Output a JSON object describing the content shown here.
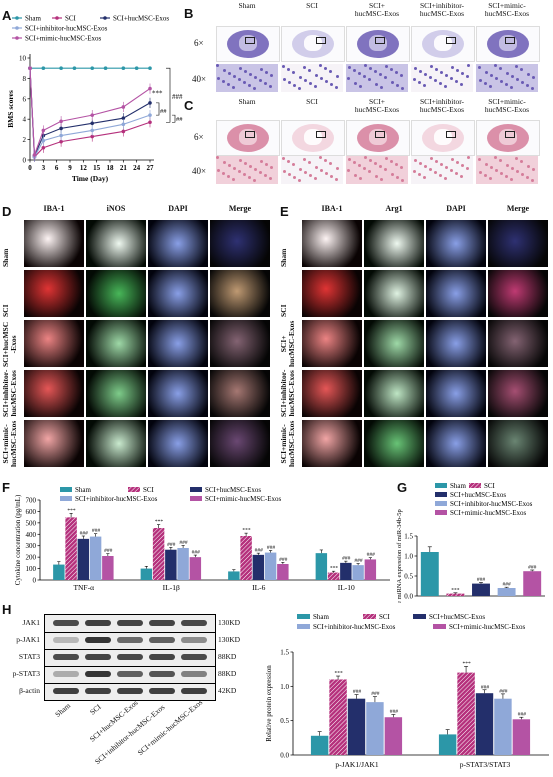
{
  "panel_labels": {
    "A": "A",
    "B": "B",
    "C": "C",
    "D": "D",
    "E": "E",
    "F": "F",
    "G": "G",
    "H": "H"
  },
  "colors": {
    "sham": "#2c97a8",
    "sci": "#b5307c",
    "exos": "#232f6b",
    "inhibitor": "#8fa8d8",
    "mimic": "#b453a4",
    "he_bg": "#f1d0da",
    "he_stain": "#d57d9a",
    "nissl_bg": "#c9c4e6",
    "nissl_stain": "#6a5bb4"
  },
  "groups_short": [
    "Sham",
    "SCI",
    "SCI+hucMSC-Exos",
    "SCI+inhibitor-hucMSC-Exos",
    "SCI+mimic-hucMSC-Exos"
  ],
  "panel_a": {
    "ylabel": "BMS scores",
    "xlabel": "Time (Day)",
    "sig_main": "***",
    "sig_right": "###",
    "sig_a": "##",
    "sig_b": "##"
  },
  "histology": {
    "mag_low": "6×",
    "mag_high": "40×",
    "columns": [
      "Sham",
      "SCI",
      "SCI+\nhucMSC-Exos",
      "SCI+inhibitor-\nhucMSC-Exos",
      "SCI+mimic-\nhucMSC-Exos"
    ]
  },
  "panel_d": {
    "headers": [
      "IBA-1",
      "iNOS",
      "DAPI",
      "Merge"
    ],
    "rows": [
      "Sham",
      "SCI",
      "SCI+hucMSC\n-Exos",
      "SCI+inhibitor-\nhucMSC-Exos",
      "SCI+mimic-\nhucMSC-Exos"
    ]
  },
  "panel_e": {
    "headers": [
      "IBA-1",
      "Arg1",
      "DAPI",
      "Merge"
    ],
    "rows": [
      "Sham",
      "SCI",
      "SCI+\nhucMSC-Exos",
      "SCI+inhibitor-\nhucMSC-Exos",
      "SCI+mimic-\nhucMSC-Exos"
    ]
  },
  "panel_h_blot": {
    "proteins": [
      "JAK1",
      "p-JAK1",
      "STAT3",
      "p-STAT3",
      "β-actin"
    ],
    "weights": [
      "130KD",
      "130KD",
      "88KD",
      "88KD",
      "42KD"
    ],
    "lanes": [
      "Sham",
      "SCI",
      "SCI+hucMSC-Exos",
      "SCI+inhibitor-hucMSC-Exos",
      "SCI+mimic-hucMSC-Exos"
    ]
  },
  "chart_data": [
    {
      "id": "A",
      "type": "line",
      "xlabel": "Time (Day)",
      "ylabel": "BMS scores",
      "x": [
        0,
        3,
        6,
        9,
        12,
        15,
        18,
        21,
        24,
        27
      ],
      "xticks": [
        "0",
        "3",
        "6",
        "9",
        "12",
        "15",
        "18",
        "21",
        "24",
        "27"
      ],
      "ylim": [
        0,
        10
      ],
      "yticks": [
        0,
        2,
        4,
        6,
        8,
        10
      ],
      "series": [
        {
          "name": "Sham",
          "x": [
            0,
            3,
            7,
            10,
            14,
            17,
            21,
            24,
            27
          ],
          "values": [
            9,
            9,
            9,
            9,
            9,
            9,
            9,
            9,
            9
          ]
        },
        {
          "name": "SCI",
          "x": [
            0,
            1,
            3,
            7,
            14,
            21,
            27
          ],
          "values": [
            9,
            0.3,
            1.2,
            1.8,
            2.3,
            2.8,
            3.7
          ]
        },
        {
          "name": "SCI+hucMSC-Exos",
          "x": [
            0,
            1,
            3,
            7,
            14,
            21,
            27
          ],
          "values": [
            9,
            0.4,
            2.4,
            3.1,
            3.6,
            4.1,
            5.6
          ]
        },
        {
          "name": "SCI+inhibitor-hucMSC-Exos",
          "x": [
            0,
            1,
            3,
            7,
            14,
            21,
            27
          ],
          "values": [
            9,
            0.3,
            1.9,
            2.4,
            2.9,
            3.5,
            4.4
          ]
        },
        {
          "name": "SCI+mimic-hucMSC-Exos",
          "x": [
            0,
            1,
            3,
            7,
            14,
            21,
            27
          ],
          "values": [
            9,
            0.5,
            2.9,
            3.8,
            4.4,
            5.2,
            7.0
          ]
        }
      ]
    },
    {
      "id": "F",
      "type": "bar",
      "ylabel": "Cytokine concentration (pg/mL)",
      "categories": [
        "TNF-α",
        "IL-1β",
        "IL-6",
        "IL-10"
      ],
      "ylim": [
        0,
        700
      ],
      "yticks": [
        0,
        100,
        200,
        300,
        400,
        500,
        600,
        700
      ],
      "series": [
        {
          "name": "Sham",
          "values": [
            135,
            100,
            75,
            235
          ]
        },
        {
          "name": "SCI",
          "values": [
            548,
            455,
            385,
            65
          ]
        },
        {
          "name": "SCI+hucMSC-Exos",
          "values": [
            360,
            265,
            220,
            150
          ]
        },
        {
          "name": "SCI+inhibitor-hucMSC-Exos",
          "values": [
            380,
            280,
            240,
            130
          ]
        },
        {
          "name": "SCI+mimic-hucMSC-Exos",
          "values": [
            210,
            200,
            140,
            180
          ]
        }
      ],
      "errors": [
        [
          25,
          20,
          15,
          28
        ],
        [
          35,
          30,
          25,
          12
        ],
        [
          25,
          20,
          15,
          15
        ],
        [
          25,
          22,
          18,
          14
        ],
        [
          20,
          18,
          15,
          15
        ]
      ],
      "sig": [
        [
          "",
          "",
          "",
          ""
        ],
        [
          "***",
          "***",
          "***",
          "***"
        ],
        [
          "###",
          "###",
          "###",
          "###"
        ],
        [
          "###",
          "###",
          "###",
          "###"
        ],
        [
          "###",
          "###",
          "###",
          "###"
        ]
      ]
    },
    {
      "id": "G",
      "type": "bar",
      "ylabel": "Relative miRNA expression of miR-34b-5p",
      "categories": [
        "Sham",
        "SCI",
        "SCI+hucMSC-Exos",
        "SCI+inhibitor-hucMSC-Exos",
        "SCI+mimic-hucMSC-Exos"
      ],
      "ylim": [
        0,
        1.5
      ],
      "yticks": [
        0.0,
        0.5,
        1.0,
        1.5
      ],
      "values": [
        1.1,
        0.06,
        0.31,
        0.2,
        0.62
      ],
      "errors": [
        0.13,
        0.02,
        0.03,
        0.02,
        0.03
      ],
      "sig": [
        "",
        "***",
        "###",
        "###",
        "###"
      ]
    },
    {
      "id": "H",
      "type": "bar",
      "ylabel": "Relative protein expression",
      "categories": [
        "p-JAK1/JAK1",
        "p-STAT3/STAT3"
      ],
      "ylim": [
        0,
        1.5
      ],
      "yticks": [
        0.0,
        0.5,
        1.0,
        1.5
      ],
      "series": [
        {
          "name": "Sham",
          "values": [
            0.28,
            0.3
          ]
        },
        {
          "name": "SCI",
          "values": [
            1.1,
            1.2
          ]
        },
        {
          "name": "SCI+hucMSC-Exos",
          "values": [
            0.82,
            0.9
          ]
        },
        {
          "name": "SCI+inhibitor-hucMSC-Exos",
          "values": [
            0.77,
            0.82
          ]
        },
        {
          "name": "SCI+mimic-hucMSC-Exos",
          "values": [
            0.55,
            0.52
          ]
        }
      ],
      "errors": [
        [
          0.06,
          0.07
        ],
        [
          0.05,
          0.09
        ],
        [
          0.06,
          0.05
        ],
        [
          0.08,
          0.07
        ],
        [
          0.04,
          0.03
        ]
      ],
      "sig": [
        [
          "",
          ""
        ],
        [
          "***",
          "***"
        ],
        [
          "###",
          "###"
        ],
        [
          "###",
          "###"
        ],
        [
          "###",
          "###"
        ]
      ]
    }
  ]
}
